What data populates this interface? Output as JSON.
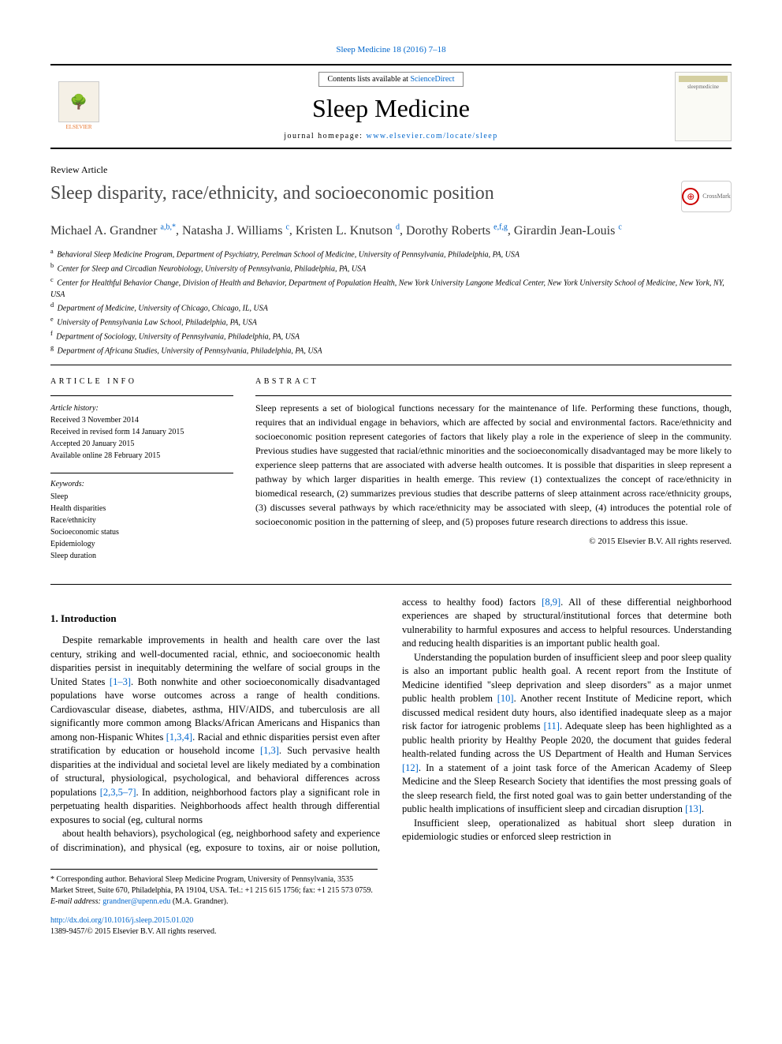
{
  "header": {
    "citation_link": "Sleep Medicine 18 (2016) 7–18",
    "contents_prefix": "Contents lists available at ",
    "contents_link": "ScienceDirect",
    "journal_name": "Sleep Medicine",
    "homepage_prefix": "journal homepage: ",
    "homepage_url": "www.elsevier.com/locate/sleep",
    "publisher_logo_label": "ELSEVIER",
    "cover_label": "sleepmedicine"
  },
  "article": {
    "type": "Review Article",
    "title": "Sleep disparity, race/ethnicity, and socioeconomic position",
    "crossmark_label": "CrossMark"
  },
  "authors": [
    {
      "name": "Michael A. Grandner",
      "marks": "a,b,*"
    },
    {
      "name": "Natasha J. Williams",
      "marks": "c"
    },
    {
      "name": "Kristen L. Knutson",
      "marks": "d"
    },
    {
      "name": "Dorothy Roberts",
      "marks": "e,f,g"
    },
    {
      "name": "Girardin Jean-Louis",
      "marks": "c"
    }
  ],
  "affiliations": [
    {
      "mark": "a",
      "text": "Behavioral Sleep Medicine Program, Department of Psychiatry, Perelman School of Medicine, University of Pennsylvania, Philadelphia, PA, USA"
    },
    {
      "mark": "b",
      "text": "Center for Sleep and Circadian Neurobiology, University of Pennsylvania, Philadelphia, PA, USA"
    },
    {
      "mark": "c",
      "text": "Center for Healthful Behavior Change, Division of Health and Behavior, Department of Population Health, New York University Langone Medical Center, New York University School of Medicine, New York, NY, USA"
    },
    {
      "mark": "d",
      "text": "Department of Medicine, University of Chicago, Chicago, IL, USA"
    },
    {
      "mark": "e",
      "text": "University of Pennsylvania Law School, Philadelphia, PA, USA"
    },
    {
      "mark": "f",
      "text": "Department of Sociology, University of Pennsylvania, Philadelphia, PA, USA"
    },
    {
      "mark": "g",
      "text": "Department of Africana Studies, University of Pennsylvania, Philadelphia, PA, USA"
    }
  ],
  "article_info": {
    "heading": "ARTICLE INFO",
    "history_label": "Article history:",
    "history": [
      "Received 3 November 2014",
      "Received in revised form 14 January 2015",
      "Accepted 20 January 2015",
      "Available online 28 February 2015"
    ],
    "keywords_label": "Keywords:",
    "keywords": [
      "Sleep",
      "Health disparities",
      "Race/ethnicity",
      "Socioeconomic status",
      "Epidemiology",
      "Sleep duration"
    ]
  },
  "abstract": {
    "heading": "ABSTRACT",
    "text": "Sleep represents a set of biological functions necessary for the maintenance of life. Performing these functions, though, requires that an individual engage in behaviors, which are affected by social and environmental factors. Race/ethnicity and socioeconomic position represent categories of factors that likely play a role in the experience of sleep in the community. Previous studies have suggested that racial/ethnic minorities and the socioeconomically disadvantaged may be more likely to experience sleep patterns that are associated with adverse health outcomes. It is possible that disparities in sleep represent a pathway by which larger disparities in health emerge. This review (1) contextualizes the concept of race/ethnicity in biomedical research, (2) summarizes previous studies that describe patterns of sleep attainment across race/ethnicity groups, (3) discusses several pathways by which race/ethnicity may be associated with sleep, (4) introduces the potential role of socioeconomic position in the patterning of sleep, and (5) proposes future research directions to address this issue.",
    "copyright": "© 2015 Elsevier B.V. All rights reserved."
  },
  "body": {
    "section1_num": "1.",
    "section1_title": "Introduction",
    "para1": "Despite remarkable improvements in health and health care over the last century, striking and well-documented racial, ethnic, and socioeconomic health disparities persist in inequitably determining the welfare of social groups in the United States [1–3]. Both nonwhite and other socioeconomically disadvantaged populations have worse outcomes across a range of health conditions. Cardiovascular disease, diabetes, asthma, HIV/AIDS, and tuberculosis are all significantly more common among Blacks/African Americans and Hispanics than among non-Hispanic Whites [1,3,4]. Racial and ethnic disparities persist even after stratification by education or household income [1,3]. Such pervasive health disparities at the individual and societal level are likely mediated by a combination of structural, physiological, psychological, and behavioral differences across populations [2,3,5–7]. In addition, neighborhood factors play a significant role in perpetuating health disparities. Neighborhoods affect health through differential exposures to social (eg, cultural norms",
    "para2": "about health behaviors), psychological (eg, neighborhood safety and experience of discrimination), and physical (eg, exposure to toxins, air or noise pollution, access to healthy food) factors [8,9]. All of these differential neighborhood experiences are shaped by structural/institutional forces that determine both vulnerability to harmful exposures and access to helpful resources. Understanding and reducing health disparities is an important public health goal.",
    "para3": "Understanding the population burden of insufficient sleep and poor sleep quality is also an important public health goal. A recent report from the Institute of Medicine identified \"sleep deprivation and sleep disorders\" as a major unmet public health problem [10]. Another recent Institute of Medicine report, which discussed medical resident duty hours, also identified inadequate sleep as a major risk factor for iatrogenic problems [11]. Adequate sleep has been highlighted as a public health priority by Healthy People 2020, the document that guides federal health-related funding across the US Department of Health and Human Services [12]. In a statement of a joint task force of the American Academy of Sleep Medicine and the Sleep Research Society that identifies the most pressing goals of the sleep research field, the first noted goal was to gain better understanding of the public health implications of insufficient sleep and circadian disruption [13].",
    "para4": "Insufficient sleep, operationalized as habitual short sleep duration in epidemiologic studies or enforced sleep restriction in"
  },
  "footnotes": {
    "corr_label": "* Corresponding author. Behavioral Sleep Medicine Program, University of Pennsylvania, 3535 Market Street, Suite 670, Philadelphia, PA 19104, USA. Tel.: +1 215 615 1756; fax: +1 215 573 0759.",
    "email_label": "E-mail address:",
    "email": "grandner@upenn.edu",
    "email_author": "(M.A. Grandner).",
    "doi": "http://dx.doi.org/10.1016/j.sleep.2015.01.020",
    "issn_copyright": "1389-9457/© 2015 Elsevier B.V. All rights reserved."
  },
  "refs": {
    "r1_3": "[1–3]",
    "r134": "[1,3,4]",
    "r13": "[1,3]",
    "r2357": "[2,3,5–7]",
    "r89": "[8,9]",
    "r10": "[10]",
    "r11": "[11]",
    "r12": "[12]",
    "r13b": "[13]"
  },
  "colors": {
    "link": "#0066cc",
    "elsevier_orange": "#e8762d",
    "text": "#000000",
    "title_gray": "#4a4a4a"
  }
}
